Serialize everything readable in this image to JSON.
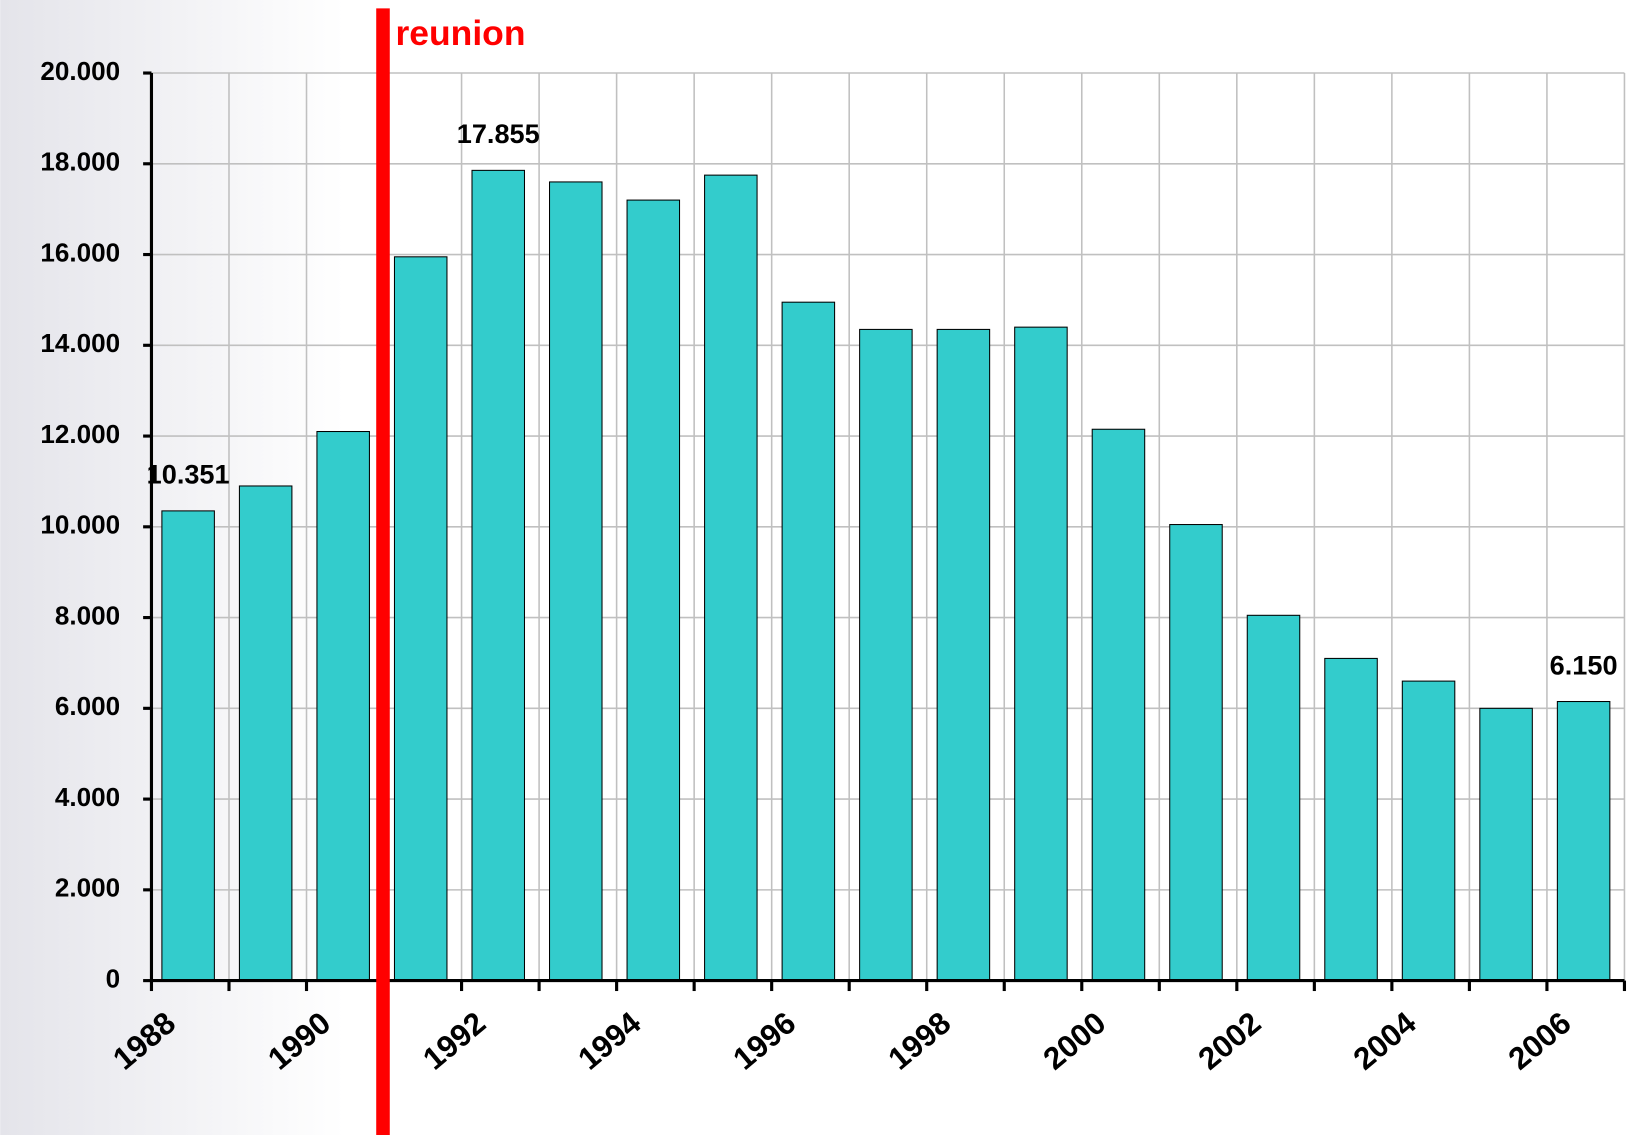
{
  "chart_data": {
    "type": "bar",
    "categories": [
      "1988",
      null,
      "1990",
      null,
      "1992",
      null,
      "1994",
      null,
      "1996",
      null,
      "1998",
      null,
      "2000",
      null,
      "2002",
      null,
      "2004",
      null,
      "2006"
    ],
    "values": [
      10351,
      10900,
      12100,
      15950,
      17855,
      17600,
      17200,
      17750,
      14950,
      14350,
      14350,
      14400,
      12150,
      10050,
      8050,
      7100,
      6600,
      6000,
      6150
    ],
    "value_labels": [
      "10.351",
      null,
      null,
      null,
      "17.855",
      null,
      null,
      null,
      null,
      null,
      null,
      null,
      null,
      null,
      null,
      null,
      null,
      null,
      "6.150"
    ],
    "color": "#33cccc",
    "ylim": [
      0,
      20000
    ],
    "yticks": [
      0,
      {
        "value": 2000,
        "label": "2.000"
      },
      {
        "value": 4000,
        "label": "4.000"
      },
      {
        "value": 6000,
        "label": "6.000"
      },
      {
        "value": 8000,
        "label": "8.000"
      },
      {
        "value": 10000,
        "label": "10.000"
      },
      {
        "value": 12000,
        "label": "12.000"
      },
      {
        "value": 14000,
        "label": "14.000"
      },
      {
        "value": 16000,
        "label": "16.000"
      },
      {
        "value": 18000,
        "label": "18.000"
      },
      {
        "value": 20000,
        "label": "20.000"
      }
    ],
    "grid": true,
    "annotations": [
      {
        "text": "reunion",
        "color": "#ff0000"
      }
    ]
  }
}
